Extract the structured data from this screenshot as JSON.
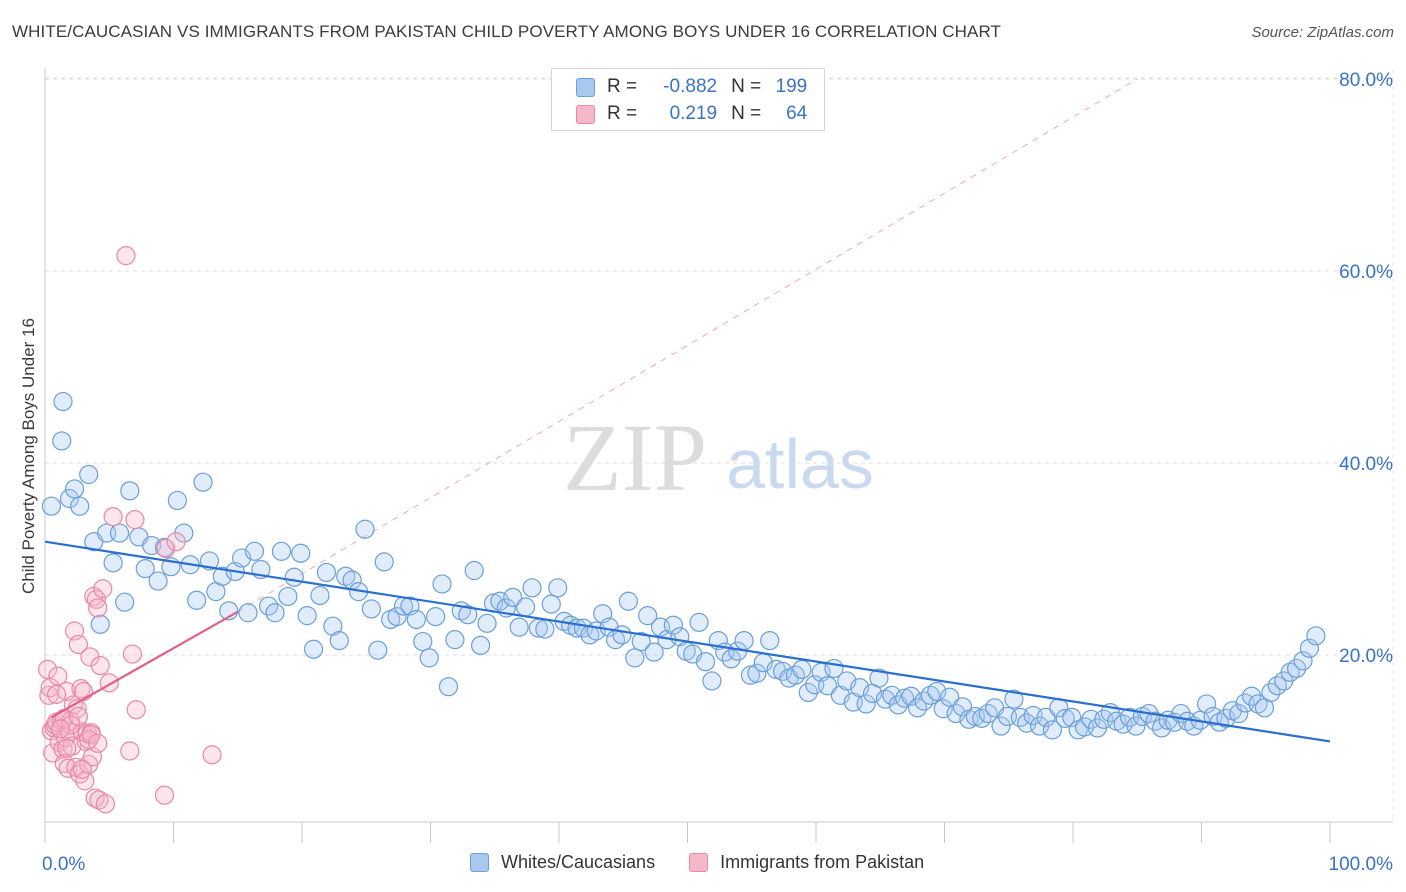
{
  "title": "WHITE/CAUCASIAN VS IMMIGRANTS FROM PAKISTAN CHILD POVERTY AMONG BOYS UNDER 16 CORRELATION CHART",
  "source": "Source: ZipAtlas.com",
  "watermark": {
    "zip": "ZIP",
    "atlas": "atlas"
  },
  "legend": {
    "rows": [
      {
        "r_label": "R =",
        "r_value": "-0.882",
        "n_label": "N =",
        "n_value": "199",
        "color": "#a8c8f0",
        "stroke": "#6a9fd8"
      },
      {
        "r_label": "R =",
        "r_value": "0.219",
        "n_label": "N =",
        "n_value": "64",
        "color": "#f5b8c8",
        "stroke": "#e888a6"
      }
    ]
  },
  "bottom_legend": [
    "Whites/Caucasians",
    "Immigrants from Pakistan"
  ],
  "colors": {
    "blue": "#6a9fd8",
    "blue_line": "#2a6fcf",
    "pink": "#e888a6",
    "pink_line": "#e0608a",
    "tick_text": "#3a72c7"
  },
  "chart_data": {
    "type": "scatter",
    "ylabel": "Child Poverty Among Boys Under 16",
    "xlim": [
      0,
      100
    ],
    "ylim": [
      0,
      85
    ],
    "x_tick_labels": [
      "0.0%",
      "100.0%"
    ],
    "y_ticks": [
      20,
      40,
      60,
      80
    ],
    "y_tick_labels": [
      "20.0%",
      "40.0%",
      "60.0%",
      "80.0%"
    ],
    "grid": "horizontal dashed",
    "legend_position": "top-center",
    "series": [
      {
        "name": "Whites/Caucasians",
        "color": "#6a9fd8",
        "trend": {
          "x": [
            0,
            100
          ],
          "y": [
            31.8,
            11.0
          ]
        },
        "points": [
          [
            0.5,
            35.5
          ],
          [
            1.3,
            42.3
          ],
          [
            1.4,
            46.4
          ],
          [
            1.9,
            36.3
          ],
          [
            2.3,
            37.3
          ],
          [
            2.7,
            35.5
          ],
          [
            3.4,
            38.8
          ],
          [
            3.8,
            31.8
          ],
          [
            4.3,
            23.2
          ],
          [
            4.8,
            32.7
          ],
          [
            5.3,
            29.6
          ],
          [
            5.8,
            32.7
          ],
          [
            6.2,
            25.5
          ],
          [
            6.6,
            37.1
          ],
          [
            7.3,
            32.3
          ],
          [
            7.8,
            29.0
          ],
          [
            8.3,
            31.4
          ],
          [
            8.8,
            27.7
          ],
          [
            9.3,
            31.2
          ],
          [
            9.8,
            29.2
          ],
          [
            10.3,
            36.1
          ],
          [
            10.8,
            32.7
          ],
          [
            11.3,
            29.4
          ],
          [
            11.8,
            25.7
          ],
          [
            12.3,
            38.0
          ],
          [
            12.8,
            29.8
          ],
          [
            13.3,
            26.6
          ],
          [
            13.8,
            28.2
          ],
          [
            14.3,
            24.6
          ],
          [
            14.8,
            28.7
          ],
          [
            15.3,
            30.1
          ],
          [
            15.8,
            24.4
          ],
          [
            16.3,
            30.8
          ],
          [
            16.8,
            28.9
          ],
          [
            17.4,
            25.1
          ],
          [
            17.9,
            24.4
          ],
          [
            18.4,
            30.8
          ],
          [
            18.9,
            26.1
          ],
          [
            19.4,
            28.1
          ],
          [
            19.9,
            30.6
          ],
          [
            20.4,
            24.1
          ],
          [
            20.9,
            20.6
          ],
          [
            21.4,
            26.2
          ],
          [
            21.9,
            28.6
          ],
          [
            22.4,
            23.0
          ],
          [
            22.9,
            21.5
          ],
          [
            23.4,
            28.2
          ],
          [
            23.9,
            27.8
          ],
          [
            24.4,
            26.6
          ],
          [
            24.9,
            33.1
          ],
          [
            25.4,
            24.8
          ],
          [
            25.9,
            20.5
          ],
          [
            26.4,
            29.7
          ],
          [
            26.9,
            23.7
          ],
          [
            27.4,
            24.0
          ],
          [
            27.9,
            25.1
          ],
          [
            28.4,
            25.1
          ],
          [
            28.9,
            23.7
          ],
          [
            29.4,
            21.4
          ],
          [
            29.9,
            19.7
          ],
          [
            30.4,
            24.0
          ],
          [
            30.9,
            27.4
          ],
          [
            31.4,
            16.7
          ],
          [
            31.9,
            21.6
          ],
          [
            32.4,
            24.6
          ],
          [
            32.9,
            24.2
          ],
          [
            33.4,
            28.8
          ],
          [
            33.9,
            21.0
          ],
          [
            34.4,
            23.3
          ],
          [
            34.9,
            25.4
          ],
          [
            35.4,
            25.6
          ],
          [
            35.9,
            24.9
          ],
          [
            36.4,
            26.0
          ],
          [
            36.9,
            22.9
          ],
          [
            37.4,
            25.0
          ],
          [
            37.9,
            27.0
          ],
          [
            38.4,
            22.8
          ],
          [
            38.9,
            22.7
          ],
          [
            39.4,
            25.3
          ],
          [
            39.9,
            27.0
          ],
          [
            40.4,
            23.5
          ],
          [
            40.9,
            23.1
          ],
          [
            41.4,
            22.8
          ],
          [
            41.9,
            22.8
          ],
          [
            42.4,
            22.1
          ],
          [
            42.9,
            22.5
          ],
          [
            43.4,
            24.3
          ],
          [
            43.9,
            22.9
          ],
          [
            44.4,
            21.6
          ],
          [
            44.9,
            22.1
          ],
          [
            45.4,
            25.6
          ],
          [
            45.9,
            19.7
          ],
          [
            46.4,
            21.4
          ],
          [
            46.9,
            24.1
          ],
          [
            47.4,
            20.3
          ],
          [
            47.9,
            22.9
          ],
          [
            48.4,
            21.6
          ],
          [
            48.9,
            23.1
          ],
          [
            49.4,
            21.9
          ],
          [
            49.9,
            20.4
          ],
          [
            50.4,
            20.1
          ],
          [
            50.9,
            23.4
          ],
          [
            51.4,
            19.3
          ],
          [
            51.9,
            17.3
          ],
          [
            52.4,
            21.5
          ],
          [
            52.9,
            20.3
          ],
          [
            53.4,
            19.6
          ],
          [
            53.9,
            20.4
          ],
          [
            54.4,
            21.5
          ],
          [
            54.9,
            17.9
          ],
          [
            55.4,
            18.1
          ],
          [
            55.9,
            19.2
          ],
          [
            56.4,
            21.5
          ],
          [
            56.9,
            18.5
          ],
          [
            57.4,
            18.3
          ],
          [
            57.9,
            17.6
          ],
          [
            58.4,
            17.9
          ],
          [
            58.9,
            18.5
          ],
          [
            59.4,
            16.1
          ],
          [
            59.9,
            16.9
          ],
          [
            60.4,
            18.2
          ],
          [
            60.9,
            16.8
          ],
          [
            61.4,
            18.6
          ],
          [
            61.9,
            15.8
          ],
          [
            62.4,
            17.3
          ],
          [
            62.9,
            15.1
          ],
          [
            63.4,
            16.6
          ],
          [
            63.9,
            14.9
          ],
          [
            64.4,
            16.0
          ],
          [
            64.9,
            17.6
          ],
          [
            65.4,
            15.4
          ],
          [
            65.9,
            15.8
          ],
          [
            66.4,
            14.8
          ],
          [
            66.9,
            15.5
          ],
          [
            67.4,
            15.7
          ],
          [
            67.9,
            14.5
          ],
          [
            68.4,
            15.2
          ],
          [
            68.9,
            15.8
          ],
          [
            69.4,
            16.2
          ],
          [
            69.9,
            14.4
          ],
          [
            70.4,
            15.6
          ],
          [
            70.9,
            13.9
          ],
          [
            71.4,
            14.6
          ],
          [
            71.9,
            13.3
          ],
          [
            72.4,
            13.6
          ],
          [
            72.9,
            13.4
          ],
          [
            73.4,
            13.9
          ],
          [
            73.9,
            14.5
          ],
          [
            74.4,
            12.6
          ],
          [
            74.9,
            13.6
          ],
          [
            75.4,
            15.4
          ],
          [
            75.9,
            13.5
          ],
          [
            76.4,
            12.9
          ],
          [
            76.9,
            13.7
          ],
          [
            77.4,
            12.6
          ],
          [
            77.9,
            13.5
          ],
          [
            78.4,
            12.2
          ],
          [
            78.9,
            14.5
          ],
          [
            79.4,
            13.4
          ],
          [
            79.9,
            13.5
          ],
          [
            80.4,
            12.2
          ],
          [
            80.9,
            12.5
          ],
          [
            81.4,
            13.3
          ],
          [
            81.9,
            12.4
          ],
          [
            82.4,
            13.3
          ],
          [
            82.9,
            14.0
          ],
          [
            83.4,
            13.1
          ],
          [
            83.9,
            12.8
          ],
          [
            84.4,
            13.5
          ],
          [
            84.9,
            12.6
          ],
          [
            85.4,
            13.6
          ],
          [
            85.9,
            13.9
          ],
          [
            86.4,
            13.1
          ],
          [
            86.9,
            12.4
          ],
          [
            87.4,
            13.2
          ],
          [
            87.9,
            13.0
          ],
          [
            88.4,
            13.9
          ],
          [
            88.9,
            13.1
          ],
          [
            89.4,
            12.6
          ],
          [
            89.9,
            13.2
          ],
          [
            90.4,
            14.9
          ],
          [
            90.9,
            13.6
          ],
          [
            91.4,
            13.0
          ],
          [
            91.9,
            13.4
          ],
          [
            92.4,
            14.2
          ],
          [
            92.9,
            13.9
          ],
          [
            93.4,
            15.0
          ],
          [
            93.9,
            15.7
          ],
          [
            94.4,
            14.9
          ],
          [
            94.9,
            14.5
          ],
          [
            95.4,
            16.1
          ],
          [
            95.9,
            16.8
          ],
          [
            96.4,
            17.3
          ],
          [
            96.9,
            18.2
          ],
          [
            97.4,
            18.6
          ],
          [
            97.9,
            19.4
          ],
          [
            98.4,
            20.7
          ],
          [
            98.9,
            22.0
          ]
        ]
      },
      {
        "name": "Immigrants from Pakistan",
        "color": "#e888a6",
        "trend": {
          "x": [
            0.5,
            15
          ],
          "y": [
            13.5,
            24.5
          ]
        },
        "dashed_extension": {
          "x": [
            15,
            85
          ],
          "y": [
            24.5,
            80
          ]
        },
        "points": [
          [
            0.2,
            18.5
          ],
          [
            0.3,
            15.8
          ],
          [
            0.4,
            16.6
          ],
          [
            0.5,
            12.1
          ],
          [
            0.6,
            9.8
          ],
          [
            0.7,
            12.4
          ],
          [
            0.8,
            12.7
          ],
          [
            0.9,
            13.0
          ],
          [
            1.0,
            17.8
          ],
          [
            1.1,
            10.9
          ],
          [
            1.3,
            13.2
          ],
          [
            1.4,
            10.2
          ],
          [
            1.5,
            8.7
          ],
          [
            1.6,
            11.4
          ],
          [
            1.7,
            16.2
          ],
          [
            1.8,
            8.2
          ],
          [
            1.9,
            12.0
          ],
          [
            2.0,
            13.1
          ],
          [
            2.1,
            10.5
          ],
          [
            2.2,
            14.8
          ],
          [
            2.3,
            22.5
          ],
          [
            2.4,
            8.3
          ],
          [
            2.5,
            14.4
          ],
          [
            2.6,
            21.1
          ],
          [
            2.7,
            7.6
          ],
          [
            2.8,
            16.5
          ],
          [
            2.9,
            12.0
          ],
          [
            3.0,
            16.2
          ],
          [
            3.1,
            6.9
          ],
          [
            3.2,
            11.0
          ],
          [
            3.3,
            11.8
          ],
          [
            3.4,
            8.6
          ],
          [
            3.5,
            19.8
          ],
          [
            3.6,
            11.9
          ],
          [
            3.7,
            9.4
          ],
          [
            3.8,
            26.1
          ],
          [
            3.9,
            5.1
          ],
          [
            4.0,
            25.8
          ],
          [
            4.1,
            24.9
          ],
          [
            4.2,
            4.9
          ],
          [
            4.3,
            18.9
          ],
          [
            4.5,
            26.9
          ],
          [
            4.7,
            4.5
          ],
          [
            5.0,
            17.1
          ],
          [
            5.3,
            34.4
          ],
          [
            6.3,
            61.6
          ],
          [
            6.6,
            10.0
          ],
          [
            6.8,
            20.1
          ],
          [
            7.0,
            34.1
          ],
          [
            7.1,
            14.3
          ],
          [
            9.3,
            5.4
          ],
          [
            9.4,
            31.1
          ],
          [
            10.2,
            31.8
          ],
          [
            13.0,
            9.6
          ],
          [
            1.5,
            13.4
          ],
          [
            2.0,
            12.7
          ],
          [
            1.2,
            12.3
          ],
          [
            0.9,
            15.9
          ],
          [
            2.6,
            13.6
          ],
          [
            3.4,
            11.2
          ],
          [
            2.9,
            8.1
          ],
          [
            1.7,
            10.3
          ],
          [
            3.6,
            11.7
          ],
          [
            4.1,
            10.8
          ]
        ]
      }
    ]
  }
}
